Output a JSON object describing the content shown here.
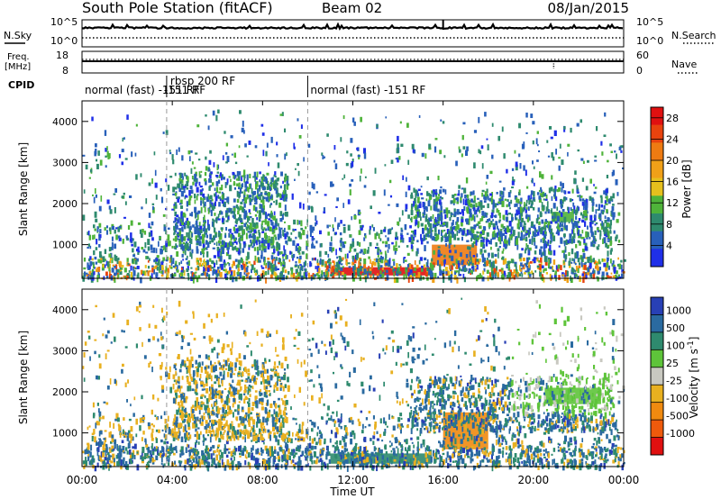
{
  "header": {
    "station": "South Pole Station (fitACF)",
    "beam": "Beam 02",
    "date": "08/Jan/2015"
  },
  "noise_panel": {
    "left_label": "N.Sky",
    "right_label": "N.Search",
    "left_ticks": [
      "10^5",
      "10^0"
    ],
    "right_ticks": [
      "10^5",
      "10^0"
    ]
  },
  "freq_panel": {
    "left_label_line1": "Freq.",
    "left_label_line2": "[MHz]",
    "left_ticks": [
      "18",
      "8"
    ],
    "right_label": "Nave",
    "right_ticks": [
      "60",
      "0"
    ]
  },
  "cpid": {
    "label": "CPID",
    "segments": [
      {
        "start": 0,
        "end": 3.75,
        "text": "normal (fast) -151 RF"
      },
      {
        "start": 3.75,
        "end": 10.0,
        "text": "rbsp 200 RF",
        "subtext": "-151 RF"
      },
      {
        "start": 10.0,
        "end": 24.0,
        "text": "normal (fast) -151 RF"
      }
    ]
  },
  "panels": [
    {
      "ylabel": "Slant Range [km]",
      "colorbar_label": "Power [dB]"
    },
    {
      "ylabel": "Slant Range [km]",
      "colorbar_label": "Velocity [m s^-1]"
    }
  ],
  "x_axis": {
    "label": "Time UT",
    "ticks": [
      "00:00",
      "04:00",
      "08:00",
      "12:00",
      "16:00",
      "20:00",
      "00:00"
    ]
  },
  "y_ticks": [
    "1000",
    "2000",
    "3000",
    "4000"
  ],
  "colors": {
    "power": [
      "#1f2fe8",
      "#2860ba",
      "#2e8a6e",
      "#4fb33a",
      "#e6c01d",
      "#f0a018",
      "#ee7b12",
      "#e8430e",
      "#e01010"
    ],
    "velocity": [
      "#2840b5",
      "#2a6aa0",
      "#2e8a6e",
      "#5ec43a",
      "#c8c8c0",
      "#e8b020",
      "#f08a10",
      "#ee5a0c",
      "#e01010"
    ]
  },
  "chart_data": [
    {
      "type": "heatmap",
      "title": "South Pole Station (fitACF)",
      "xlabel": "Time UT",
      "ylabel": "Slant Range [km]",
      "xlim": [
        0,
        24
      ],
      "ylim": [
        180,
        4500
      ],
      "x_ticks": [
        "00:00",
        "04:00",
        "08:00",
        "12:00",
        "16:00",
        "20:00",
        "00:00"
      ],
      "colorbar": {
        "label": "Power [dB]",
        "ticks": [
          4,
          8,
          12,
          16,
          20,
          24,
          28
        ],
        "range": [
          0,
          30
        ]
      },
      "regions": [
        {
          "t": [
            11.0,
            15.5
          ],
          "r": [
            250,
            450
          ],
          "value": 28
        },
        {
          "t": [
            15.5,
            17.5
          ],
          "r": [
            500,
            1000
          ],
          "value": 22
        },
        {
          "t": [
            20.8,
            21.8
          ],
          "r": [
            1550,
            1800
          ],
          "value": 12
        }
      ]
    },
    {
      "type": "heatmap",
      "title": "",
      "xlabel": "Time UT",
      "ylabel": "Slant Range [km]",
      "xlim": [
        0,
        24
      ],
      "ylim": [
        180,
        4500
      ],
      "x_ticks": [
        "00:00",
        "04:00",
        "08:00",
        "12:00",
        "16:00",
        "20:00",
        "00:00"
      ],
      "colorbar": {
        "label": "Velocity [m s^-1]",
        "ticks": [
          1000,
          500,
          100,
          25,
          -25,
          -100,
          -500,
          -1000
        ]
      },
      "regions": [
        {
          "t": [
            11.0,
            15.5
          ],
          "r": [
            250,
            500
          ],
          "value": 100
        },
        {
          "t": [
            16.0,
            18.0
          ],
          "r": [
            600,
            1500
          ],
          "value": -500
        },
        {
          "t": [
            20.5,
            23.0
          ],
          "r": [
            1700,
            2100
          ],
          "value": 0
        }
      ]
    }
  ]
}
